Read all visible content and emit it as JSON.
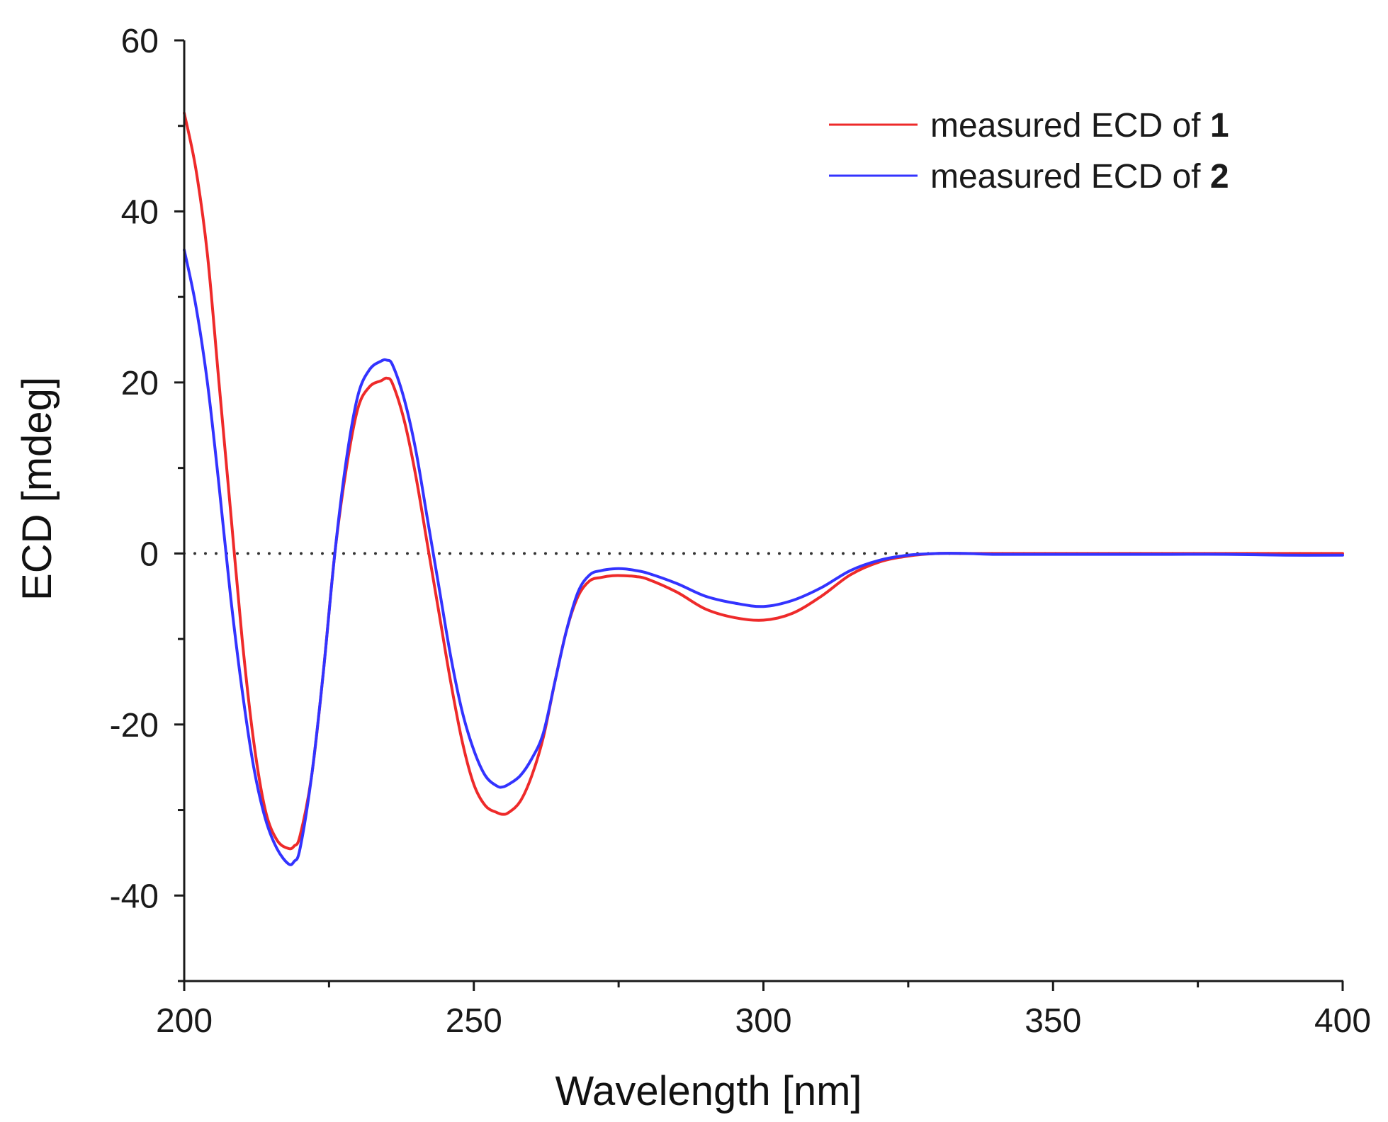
{
  "chart_data": {
    "type": "line",
    "title": "",
    "xlabel": "Wavelength [nm]",
    "ylabel": "ECD [mdeg]",
    "xlim": [
      200,
      400
    ],
    "ylim": [
      -50,
      60
    ],
    "x_ticks": [
      200,
      250,
      300,
      350,
      400
    ],
    "x_tick_labels": [
      "200",
      "250",
      "300",
      "350",
      "400"
    ],
    "x_minor_ticks": [
      225,
      275,
      325,
      375
    ],
    "y_ticks": [
      -40,
      -20,
      0,
      20,
      40,
      60
    ],
    "y_tick_labels": [
      "-40",
      "-20",
      "0",
      "20",
      "40",
      "60"
    ],
    "y_minor_ticks": [
      -50,
      -30,
      -10,
      10,
      30,
      50
    ],
    "zero_line": {
      "y": 0,
      "style": "dotted"
    },
    "grid": false,
    "legend_position": "top-right",
    "series": [
      {
        "name": "measured ECD of 1",
        "label_prefix": "measured ECD of ",
        "label_bold": "1",
        "color": "#ee2a2a",
        "x": [
          200,
          202,
          204,
          206,
          208,
          210,
          212,
          214,
          216,
          218,
          219,
          220,
          222,
          224,
          226,
          228,
          230,
          232,
          234,
          235,
          236,
          238,
          240,
          242,
          244,
          246,
          248,
          250,
          252,
          254,
          255,
          256,
          258,
          260,
          262,
          264,
          266,
          268,
          270,
          272,
          274,
          276,
          278,
          280,
          285,
          290,
          295,
          300,
          305,
          310,
          315,
          320,
          325,
          330,
          335,
          340,
          350,
          360,
          370,
          380,
          390,
          400
        ],
        "y": [
          51.5,
          45,
          35,
          20,
          5,
          -10,
          -22,
          -30,
          -33.5,
          -34.5,
          -34.2,
          -33,
          -26,
          -14,
          0,
          10,
          17,
          19.5,
          20.2,
          20.5,
          19.8,
          15.5,
          9,
          1,
          -7,
          -15,
          -22,
          -27,
          -29.5,
          -30.3,
          -30.5,
          -30.3,
          -29,
          -26,
          -21.5,
          -15,
          -9,
          -5,
          -3.2,
          -2.8,
          -2.6,
          -2.6,
          -2.7,
          -3,
          -4.5,
          -6.5,
          -7.5,
          -7.8,
          -7,
          -5,
          -2.5,
          -1,
          -0.3,
          0,
          0,
          0,
          0,
          0,
          0,
          0,
          0,
          0
        ]
      },
      {
        "name": "measured ECD of 2",
        "label_prefix": "measured ECD of ",
        "label_bold": "2",
        "color": "#3333ff",
        "x": [
          200,
          202,
          204,
          206,
          208,
          210,
          212,
          214,
          216,
          218,
          219,
          220,
          222,
          224,
          226,
          228,
          230,
          232,
          234,
          235,
          236,
          238,
          240,
          242,
          244,
          246,
          248,
          250,
          252,
          254,
          255,
          256,
          258,
          260,
          262,
          264,
          266,
          268,
          270,
          272,
          274,
          276,
          278,
          280,
          285,
          290,
          295,
          300,
          305,
          310,
          315,
          320,
          325,
          330,
          335,
          340,
          350,
          360,
          370,
          380,
          390,
          400
        ],
        "y": [
          35.5,
          29,
          20,
          8,
          -5,
          -16,
          -25,
          -31,
          -34.5,
          -36.3,
          -36,
          -34.5,
          -26,
          -14,
          0,
          11,
          18.5,
          21.5,
          22.5,
          22.6,
          22,
          18,
          12,
          4,
          -4,
          -12,
          -18.5,
          -23,
          -26,
          -27.2,
          -27.3,
          -27,
          -26,
          -24,
          -21,
          -15,
          -9,
          -4.5,
          -2.5,
          -2,
          -1.8,
          -1.8,
          -2,
          -2.3,
          -3.5,
          -5,
          -5.8,
          -6.2,
          -5.5,
          -4,
          -2,
          -0.8,
          -0.2,
          0,
          0,
          -0.1,
          -0.1,
          -0.1,
          -0.1,
          -0.1,
          -0.2,
          -0.2
        ]
      }
    ]
  }
}
